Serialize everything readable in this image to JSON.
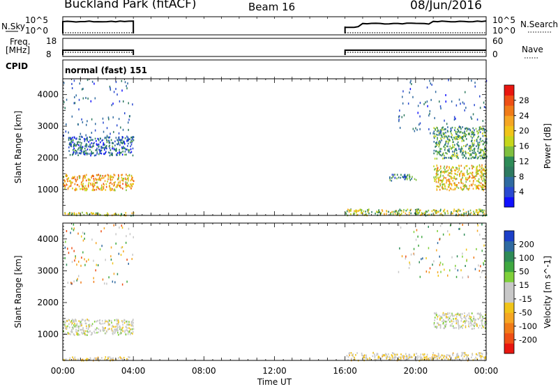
{
  "header": {
    "station": "Buckland Park (fitACF)",
    "beam": "Beam 16",
    "date": "08/Jun/2016"
  },
  "top_panels": {
    "nsky_label": "N.Sky",
    "nsky_ticks": [
      "10^5",
      "10^0"
    ],
    "nsearch_label": "N.Search",
    "nsearch_ticks": [
      "10^5",
      "10^0"
    ],
    "freq_label": "Freq.",
    "freq_unit": "[MHz]",
    "freq_ticks": [
      "18",
      "8"
    ],
    "nave_label": "Nave",
    "nave_ticks": [
      "60",
      "0"
    ],
    "cpid_label": "CPID",
    "cpid_text": "normal (fast) 151"
  },
  "chart_data": [
    {
      "type": "heatmap",
      "name": "power",
      "ylabel": "Slant Range [km]",
      "yticks": [
        "4000",
        "3000",
        "2000",
        "1000"
      ],
      "ylim": [
        180,
        4500
      ],
      "xlim": [
        0,
        24
      ],
      "data_gaps": [
        [
          4.0,
          16.0
        ]
      ],
      "colorbar": {
        "label": "Power [dB]",
        "ticks": [
          "28",
          "24",
          "20",
          "16",
          "12",
          "8",
          "4"
        ],
        "range": [
          0,
          32
        ],
        "colors": [
          "#1010ff",
          "#2a4ad0",
          "#2f6aa0",
          "#2e7a60",
          "#2e8b57",
          "#7fbf3f",
          "#c6d61c",
          "#f0c419",
          "#f5a623",
          "#f07b18",
          "#ee4f15",
          "#e8160f"
        ]
      },
      "bands": [
        {
          "range_km": [
            1000,
            1500
          ],
          "t": [
            0.0,
            4.0
          ],
          "power_db": 22
        },
        {
          "range_km": [
            2100,
            2700
          ],
          "t": [
            0.3,
            4.0
          ],
          "power_db": 7
        },
        {
          "range_km": [
            200,
            300
          ],
          "t": [
            0.0,
            4.0
          ],
          "power_db": 18
        },
        {
          "range_km": [
            200,
            400
          ],
          "t": [
            16.0,
            24.0
          ],
          "power_db": 16
        },
        {
          "range_km": [
            1300,
            1500
          ],
          "t": [
            18.5,
            20.0
          ],
          "power_db": 9
        },
        {
          "range_km": [
            1000,
            1800
          ],
          "t": [
            21.0,
            24.0
          ],
          "power_db": 20
        },
        {
          "range_km": [
            2000,
            3000
          ],
          "t": [
            21.0,
            24.0
          ],
          "power_db": 12
        }
      ]
    },
    {
      "type": "heatmap",
      "name": "velocity",
      "ylabel": "Slant Range [km]",
      "yticks": [
        "4000",
        "3000",
        "2000",
        "1000"
      ],
      "ylim": [
        180,
        4500
      ],
      "xlim": [
        0,
        24
      ],
      "xlabel": "Time UT",
      "xticks": [
        "00:00",
        "04:00",
        "08:00",
        "12:00",
        "16:00",
        "20:00",
        "00:00"
      ],
      "data_gaps": [
        [
          4.0,
          16.0
        ]
      ],
      "colorbar": {
        "label": "Velocity [m s^-1]",
        "ticks": [
          "200",
          "100",
          "50",
          "15",
          "-15",
          "-50",
          "-100",
          "-200"
        ],
        "range": [
          -250,
          250
        ],
        "colors": [
          "#e8160f",
          "#ee4f15",
          "#f07b18",
          "#f5a623",
          "#f0c419",
          "#c8c8c8",
          "#c8c8c8",
          "#7fd03a",
          "#3fa840",
          "#2e8b57",
          "#2f6aa0",
          "#1c3fc8"
        ]
      },
      "bands": [
        {
          "range_km": [
            1000,
            1500
          ],
          "t": [
            0.0,
            4.0
          ],
          "velocity_ms": 0
        },
        {
          "range_km": [
            200,
            320
          ],
          "t": [
            0.0,
            4.0
          ],
          "velocity_ms": -40
        },
        {
          "range_km": [
            200,
            450
          ],
          "t": [
            16.0,
            24.0
          ],
          "velocity_ms": -30
        },
        {
          "range_km": [
            1200,
            1700
          ],
          "t": [
            21.0,
            24.0
          ],
          "velocity_ms": 0
        }
      ]
    }
  ]
}
